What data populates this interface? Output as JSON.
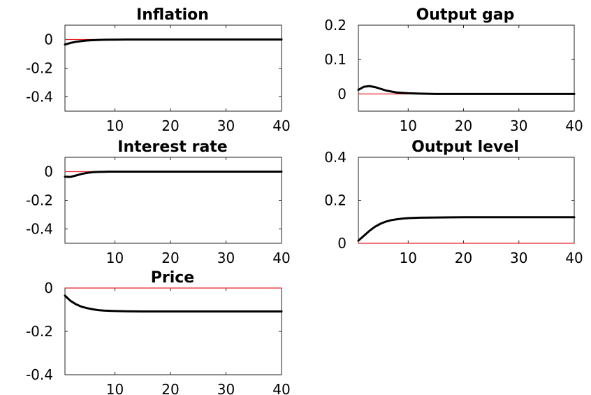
{
  "figure": {
    "background": "#ffffff",
    "series_color": "#000000",
    "zero_line_color": "#e8232a"
  },
  "chart_data": [
    {
      "type": "line",
      "title": "Inflation",
      "xlim": [
        1,
        40
      ],
      "ylim": [
        -0.5,
        0.1
      ],
      "xticks": [
        10,
        20,
        30,
        40
      ],
      "xtick_labels": [
        "10",
        "20",
        "30",
        "40"
      ],
      "yticks": [
        0,
        -0.2,
        -0.4
      ],
      "ytick_labels": [
        "0",
        "-0.2",
        "-0.4"
      ],
      "reference_line": 0,
      "x": [
        1,
        2,
        3,
        4,
        5,
        6,
        7,
        8,
        9,
        10,
        12,
        15,
        20,
        25,
        30,
        35,
        40
      ],
      "y": [
        -0.035,
        -0.024,
        -0.016,
        -0.011,
        -0.007,
        -0.005,
        -0.003,
        -0.002,
        -0.001,
        -0.001,
        0,
        0,
        0,
        0,
        0,
        0,
        0
      ]
    },
    {
      "type": "line",
      "title": "Output gap",
      "xlim": [
        1,
        40
      ],
      "ylim": [
        -0.05,
        0.2
      ],
      "xticks": [
        10,
        20,
        30,
        40
      ],
      "xtick_labels": [
        "10",
        "20",
        "30",
        "40"
      ],
      "yticks": [
        0.2,
        0.1,
        0
      ],
      "ytick_labels": [
        "0.2",
        "0.1",
        "0"
      ],
      "reference_line": 0,
      "x": [
        1,
        2,
        3,
        4,
        5,
        6,
        7,
        8,
        9,
        10,
        12,
        15,
        20,
        25,
        30,
        35,
        40
      ],
      "y": [
        0.012,
        0.021,
        0.023,
        0.02,
        0.015,
        0.01,
        0.007,
        0.004,
        0.003,
        0.002,
        0.001,
        0,
        0,
        0,
        0,
        0,
        0
      ]
    },
    {
      "type": "line",
      "title": "Interest rate",
      "xlim": [
        1,
        40
      ],
      "ylim": [
        -0.5,
        0.1
      ],
      "xticks": [
        10,
        20,
        30,
        40
      ],
      "xtick_labels": [
        "10",
        "20",
        "30",
        "40"
      ],
      "yticks": [
        0,
        -0.2,
        -0.4
      ],
      "ytick_labels": [
        "0",
        "-0.2",
        "-0.4"
      ],
      "reference_line": 0,
      "x": [
        1,
        2,
        3,
        4,
        5,
        6,
        7,
        8,
        9,
        10,
        12,
        15,
        20,
        25,
        30,
        35,
        40
      ],
      "y": [
        -0.035,
        -0.037,
        -0.027,
        -0.016,
        -0.009,
        -0.004,
        -0.002,
        -0.001,
        0,
        0,
        0,
        0,
        0,
        0,
        0,
        0,
        0
      ]
    },
    {
      "type": "line",
      "title": "Output level",
      "xlim": [
        1,
        40
      ],
      "ylim": [
        0,
        0.4
      ],
      "xticks": [
        10,
        20,
        30,
        40
      ],
      "xtick_labels": [
        "10",
        "20",
        "30",
        "40"
      ],
      "yticks": [
        0.4,
        0.2,
        0
      ],
      "ytick_labels": [
        "0.4",
        "0.2",
        "0"
      ],
      "reference_line": 0,
      "x": [
        1,
        2,
        3,
        4,
        5,
        6,
        7,
        8,
        9,
        10,
        12,
        15,
        20,
        25,
        30,
        35,
        40
      ],
      "y": [
        0.012,
        0.035,
        0.058,
        0.077,
        0.091,
        0.101,
        0.108,
        0.112,
        0.115,
        0.117,
        0.119,
        0.12,
        0.121,
        0.121,
        0.121,
        0.121,
        0.121
      ]
    },
    {
      "type": "line",
      "title": "Price",
      "xlim": [
        1,
        40
      ],
      "ylim": [
        -0.4,
        0
      ],
      "xticks": [
        10,
        20,
        30,
        40
      ],
      "xtick_labels": [
        "10",
        "20",
        "30",
        "40"
      ],
      "yticks": [
        0,
        -0.2,
        -0.4
      ],
      "ytick_labels": [
        "0",
        "-0.2",
        "-0.4"
      ],
      "reference_line": 0,
      "x": [
        1,
        2,
        3,
        4,
        5,
        6,
        7,
        8,
        9,
        10,
        12,
        15,
        20,
        25,
        30,
        35,
        40
      ],
      "y": [
        -0.035,
        -0.059,
        -0.075,
        -0.086,
        -0.093,
        -0.098,
        -0.102,
        -0.104,
        -0.105,
        -0.106,
        -0.107,
        -0.108,
        -0.108,
        -0.108,
        -0.108,
        -0.108,
        -0.108
      ]
    }
  ]
}
